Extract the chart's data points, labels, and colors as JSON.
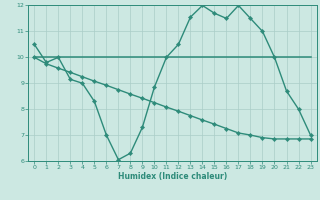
{
  "x": [
    0,
    1,
    2,
    3,
    4,
    5,
    6,
    7,
    8,
    9,
    10,
    11,
    12,
    13,
    14,
    15,
    16,
    17,
    18,
    19,
    20,
    21,
    22,
    23
  ],
  "line1_wavy": [
    10.5,
    9.8,
    10.0,
    9.15,
    9.0,
    8.3,
    7.0,
    6.05,
    6.3,
    7.3,
    8.85,
    10.0,
    10.5,
    11.55,
    12.0,
    11.7,
    11.5,
    12.0,
    11.5,
    11.0,
    10.0,
    8.7,
    8.0,
    7.0
  ],
  "line2_flat": [
    10.0,
    10.0,
    10.0,
    10.0,
    10.0,
    10.0,
    10.0,
    10.0,
    10.0,
    10.0,
    10.0,
    10.0,
    10.0,
    10.0,
    10.0,
    10.0,
    10.0,
    10.0,
    10.0,
    10.0,
    10.0,
    10.0,
    10.0,
    10.0
  ],
  "line3_decline": [
    10.0,
    9.75,
    9.58,
    9.42,
    9.25,
    9.08,
    8.92,
    8.75,
    8.58,
    8.42,
    8.25,
    8.08,
    7.92,
    7.75,
    7.58,
    7.42,
    7.25,
    7.08,
    7.0,
    6.9,
    6.85,
    6.85,
    6.85,
    6.85
  ],
  "color": "#2e8b7a",
  "bg_color": "#cce8e2",
  "grid_color": "#aacdc8",
  "ylim": [
    6,
    12
  ],
  "xlim": [
    -0.5,
    23.5
  ],
  "yticks": [
    6,
    7,
    8,
    9,
    10,
    11,
    12
  ],
  "xticks": [
    0,
    1,
    2,
    3,
    4,
    5,
    6,
    7,
    8,
    9,
    10,
    11,
    12,
    13,
    14,
    15,
    16,
    17,
    18,
    19,
    20,
    21,
    22,
    23
  ],
  "xlabel": "Humidex (Indice chaleur)",
  "markersize": 2.2,
  "linewidth": 1.0,
  "label_fontsize": 5.5,
  "tick_fontsize": 4.5
}
